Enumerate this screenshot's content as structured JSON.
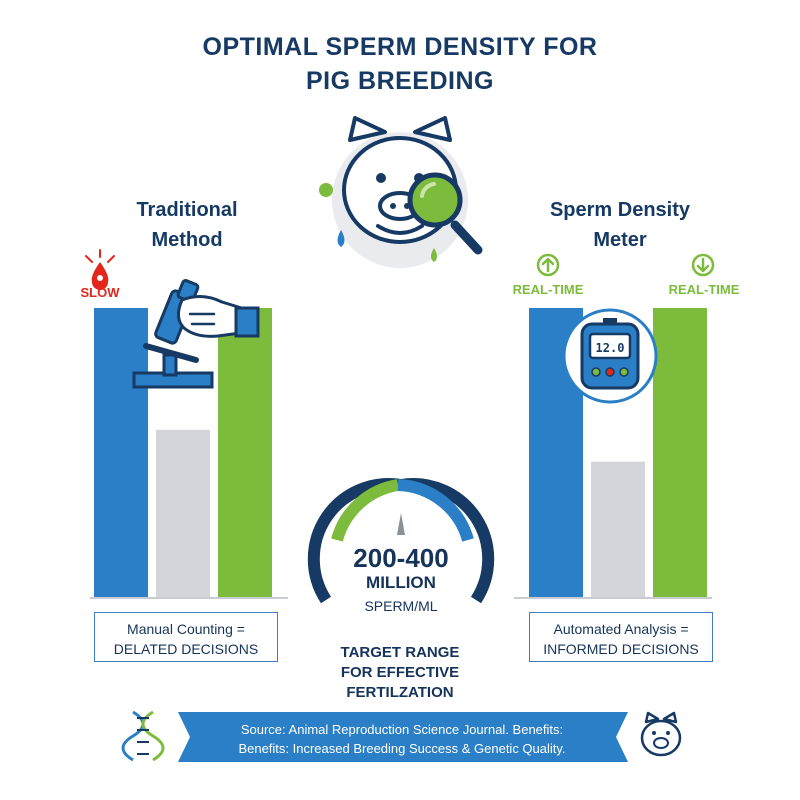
{
  "title": {
    "line1": "OPTIMAL SPERM DENSITY FOR",
    "line2": "PIG BREEDING"
  },
  "colors": {
    "blue": "#2b7fc6",
    "gray": "#d3d5da",
    "green": "#7dbb3c",
    "navy": "#163a63",
    "red": "#e2261c"
  },
  "chart_data": [
    {
      "type": "bar",
      "panel": "left",
      "heading": [
        "Traditional",
        "Method"
      ],
      "badge": {
        "label": "SLOW",
        "icon": "blood-drop-icon",
        "color": "#e2261c"
      },
      "bars_colors": [
        "#2b7fc6",
        "#d3d5da",
        "#7dbb3c"
      ],
      "values": [
        1.0,
        0.58,
        1.0
      ],
      "illustration": "hand-microscope-icon",
      "caption": [
        "Manual Counting =",
        "DELATED DECISIONS"
      ]
    },
    {
      "type": "bar",
      "panel": "right",
      "heading": [
        "Sperm Density",
        "Meter"
      ],
      "badges": [
        {
          "label": "REAL-TIME",
          "icon": "arrow-up-circle-icon",
          "color": "#7dbb3c"
        },
        {
          "label": "REAL-TIME",
          "icon": "arrow-down-circle-icon",
          "color": "#7dbb3c"
        }
      ],
      "bars_colors": [
        "#2b7fc6",
        "#d3d5da",
        "#7dbb3c"
      ],
      "values": [
        1.0,
        0.47,
        1.0
      ],
      "illustration": "density-meter-icon",
      "meter_display": "12.0",
      "caption": [
        "Automated Analysis =",
        "INFORMED DECISIONS"
      ]
    }
  ],
  "gauge": {
    "range": "200-400",
    "unit": "MILLION",
    "sub": "SPERM/ML",
    "caption": [
      "TARGET RANGE",
      "FOR EFFECTIVE",
      "FERTILZATION"
    ]
  },
  "source": {
    "line1": "Source: Animal Reproduction Science Journal. Benefits:",
    "line2": "Benefits: Increased Breeding Success & Genetic Quality."
  },
  "icons": {
    "center": "pig-magnifier-icon",
    "footer_left": "dna-icon",
    "footer_right": "pig-face-icon"
  }
}
